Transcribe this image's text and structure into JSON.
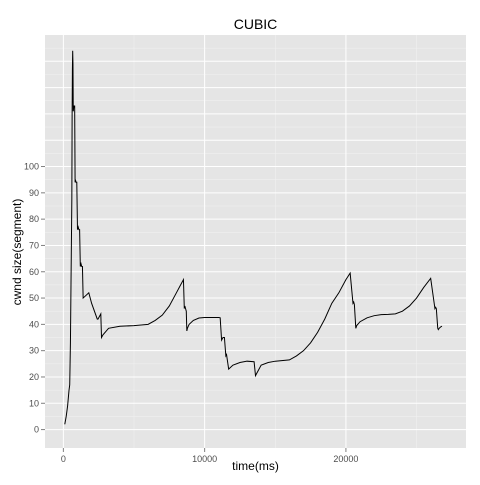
{
  "chart_data": {
    "type": "line",
    "title": "CUBIC",
    "xlabel": "time(ms)",
    "ylabel": "cwnd size(segment)",
    "xlim": [
      -1300,
      28500
    ],
    "ylim": [
      -7,
      150
    ],
    "x_ticks": [
      0,
      10000,
      20000
    ],
    "x_tick_labels": [
      "0",
      "10000",
      "20000"
    ],
    "y_ticks": [
      0,
      10,
      20,
      30,
      40,
      50,
      60,
      70,
      80,
      90,
      100
    ],
    "y_tick_labels": [
      "0",
      "10",
      "20",
      "30",
      "40",
      "50",
      "60",
      "70",
      "80",
      "90",
      "100"
    ],
    "grid": true,
    "colors": {
      "panel": "#e5e5e5",
      "grid_major": "#ffffff",
      "grid_minor": "#f2f2f2",
      "line": "#000000"
    },
    "series": [
      {
        "x": [
          100,
          200,
          250,
          300,
          350,
          400,
          450,
          500,
          520,
          540,
          560,
          580,
          600,
          620,
          640,
          660,
          680,
          700,
          720,
          740,
          800,
          830,
          850,
          900,
          950,
          1000,
          1050,
          1100,
          1150,
          1200,
          1250,
          1300,
          1350,
          1400,
          1800,
          2000,
          2400,
          2450,
          2650,
          2700,
          2800,
          3200,
          4000,
          5000,
          6000,
          6500,
          7000,
          7500,
          8000,
          8300,
          8500,
          8560,
          8600,
          8700,
          8740,
          8780,
          8900,
          9200,
          9600,
          10000,
          10400,
          10800,
          11000,
          11100,
          11200,
          11300,
          11400,
          11500,
          11550,
          11700,
          12000,
          12500,
          13000,
          13500,
          13600,
          13700,
          14000,
          14500,
          15000,
          16000,
          16500,
          17000,
          17500,
          18000,
          18500,
          19000,
          19500,
          20000,
          20300,
          20500,
          20550,
          20600,
          20700,
          20760,
          21000,
          21500,
          22000,
          22500,
          23000,
          23500,
          24000,
          24500,
          25000,
          25500,
          26000,
          26300,
          26350,
          26400,
          26500,
          26540,
          26600,
          26700,
          26800
        ],
        "y": [
          2,
          5,
          7,
          9,
          12,
          15,
          17,
          33,
          44,
          55,
          66,
          77,
          88,
          120,
          137,
          144,
          139,
          121,
          122,
          123,
          123,
          94,
          95,
          94,
          94,
          76,
          77,
          76,
          76,
          62,
          63,
          62,
          62,
          50,
          52,
          48,
          42,
          42,
          44,
          35,
          36,
          38.5,
          39.3,
          39.5,
          40,
          41.5,
          43.5,
          47,
          52,
          55,
          57,
          46,
          47,
          45,
          37.5,
          38.5,
          40,
          41.5,
          42.4,
          42.6,
          42.6,
          42.6,
          42.6,
          42.5,
          34,
          35,
          35,
          28,
          28.5,
          23,
          24.5,
          25.5,
          26,
          25.8,
          20.5,
          21.5,
          24.5,
          25.5,
          26,
          26.5,
          28,
          30,
          33,
          37,
          42,
          48,
          52,
          57,
          59.5,
          48,
          48.5,
          47.5,
          38.5,
          39.5,
          41,
          42.5,
          43.3,
          43.7,
          43.8,
          44,
          45,
          47,
          50,
          54,
          57.5,
          46,
          46.5,
          46,
          38.5,
          38,
          38.5,
          39,
          39.3
        ]
      }
    ]
  }
}
